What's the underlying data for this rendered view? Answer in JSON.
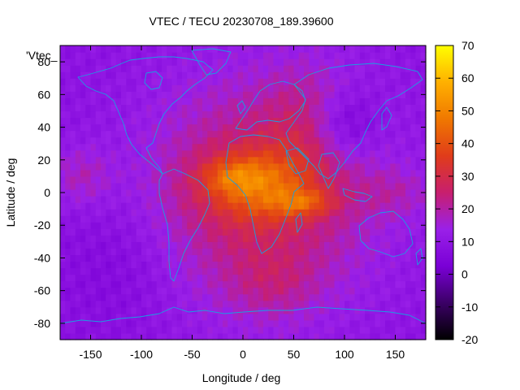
{
  "chart_data": {
    "type": "heatmap",
    "title": "VTEC / TECU 20230708_189.39600",
    "xlabel": "Longitude / deg",
    "ylabel": "Latitude / deg",
    "key_label": "'Vtec_",
    "xlim": [
      -180,
      180
    ],
    "ylim": [
      -90,
      90
    ],
    "x_ticks": [
      -150,
      -100,
      -50,
      0,
      50,
      100,
      150
    ],
    "y_ticks": [
      -80,
      -60,
      -40,
      -20,
      0,
      20,
      40,
      60,
      80
    ],
    "colorbar": {
      "range": [
        -20,
        70
      ],
      "ticks": [
        -20,
        -10,
        0,
        10,
        20,
        30,
        40,
        50,
        60,
        70
      ],
      "palette": [
        "#000000",
        "#3b0066",
        "#7a00d6",
        "#9a20e8",
        "#c81f6e",
        "#e03c1a",
        "#f07800",
        "#ffb000",
        "#ffff00"
      ]
    },
    "grid": false,
    "legend": "top-left",
    "overlay": "coastlines",
    "colors": {
      "coast": "#1a9fe0",
      "frame": "#000000"
    }
  }
}
